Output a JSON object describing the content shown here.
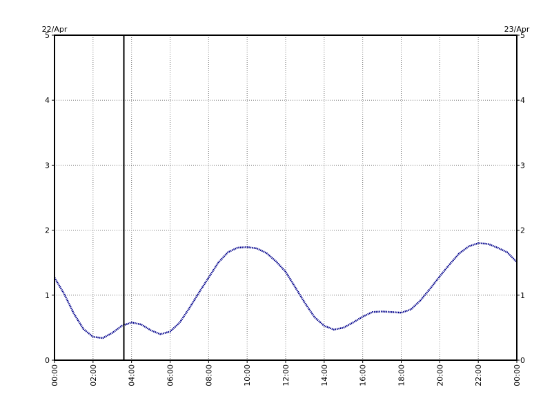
{
  "chart_data": {
    "type": "line",
    "start_date_label": "22/Apr",
    "end_date_label": "23/Apr",
    "x_tick_labels": [
      "00:00",
      "02:00",
      "04:00",
      "06:00",
      "08:00",
      "10:00",
      "12:00",
      "14:00",
      "16:00",
      "18:00",
      "20:00",
      "22:00",
      "00:00"
    ],
    "x_range_hours": [
      0,
      24
    ],
    "y_ticks": [
      0,
      1,
      2,
      3,
      4,
      5
    ],
    "ylim": [
      0,
      5
    ],
    "grid": true,
    "current_time_hours": 3.6,
    "series": [
      {
        "color": "#00008b",
        "x": [
          0,
          0.5,
          1,
          1.5,
          2,
          2.5,
          3,
          3.5,
          4,
          4.5,
          5,
          5.5,
          6,
          6.5,
          7,
          7.5,
          8,
          8.5,
          9,
          9.5,
          10,
          10.5,
          11,
          11.5,
          12,
          12.5,
          13,
          13.5,
          14,
          14.5,
          15,
          15.5,
          16,
          16.5,
          17,
          17.5,
          18,
          18.5,
          19,
          19.5,
          20,
          20.5,
          21,
          21.5,
          22,
          22.5,
          23,
          23.5,
          24
        ],
        "values": [
          1.27,
          1.02,
          0.72,
          0.48,
          0.36,
          0.34,
          0.42,
          0.53,
          0.58,
          0.55,
          0.46,
          0.4,
          0.44,
          0.58,
          0.8,
          1.04,
          1.27,
          1.5,
          1.66,
          1.73,
          1.74,
          1.72,
          1.65,
          1.52,
          1.36,
          1.12,
          0.88,
          0.66,
          0.53,
          0.47,
          0.5,
          0.58,
          0.67,
          0.74,
          0.75,
          0.74,
          0.73,
          0.78,
          0.92,
          1.1,
          1.29,
          1.47,
          1.64,
          1.75,
          1.8,
          1.79,
          1.73,
          1.66,
          1.51
        ]
      }
    ]
  }
}
